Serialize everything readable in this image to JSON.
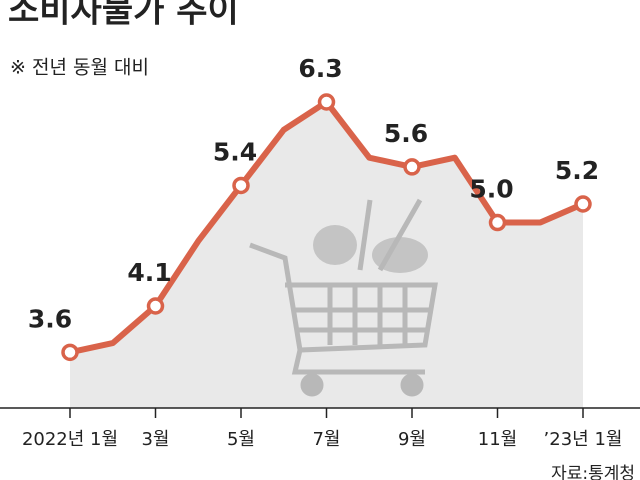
{
  "chart_data": {
    "type": "line",
    "title": "소비자물가 추이",
    "subtitle": "※ 전년 동월 대비",
    "source": "자료:통계청",
    "categories": [
      "2022년 1월",
      null,
      "3월",
      null,
      "5월",
      null,
      "7월",
      null,
      "9월",
      null,
      "11월",
      null,
      "’23년 1월"
    ],
    "values": [
      3.6,
      3.7,
      4.1,
      4.8,
      5.4,
      6.0,
      6.3,
      5.7,
      5.6,
      5.7,
      5.0,
      5.0,
      5.2
    ],
    "value_labels": [
      "3.6",
      null,
      "4.1",
      null,
      "5.4",
      null,
      "6.3",
      null,
      "5.6",
      null,
      "5.0",
      null,
      "5.2"
    ],
    "color": "#d9634a",
    "area_color": "#e9e9e9",
    "ylim": [
      3.0,
      7.4
    ]
  }
}
